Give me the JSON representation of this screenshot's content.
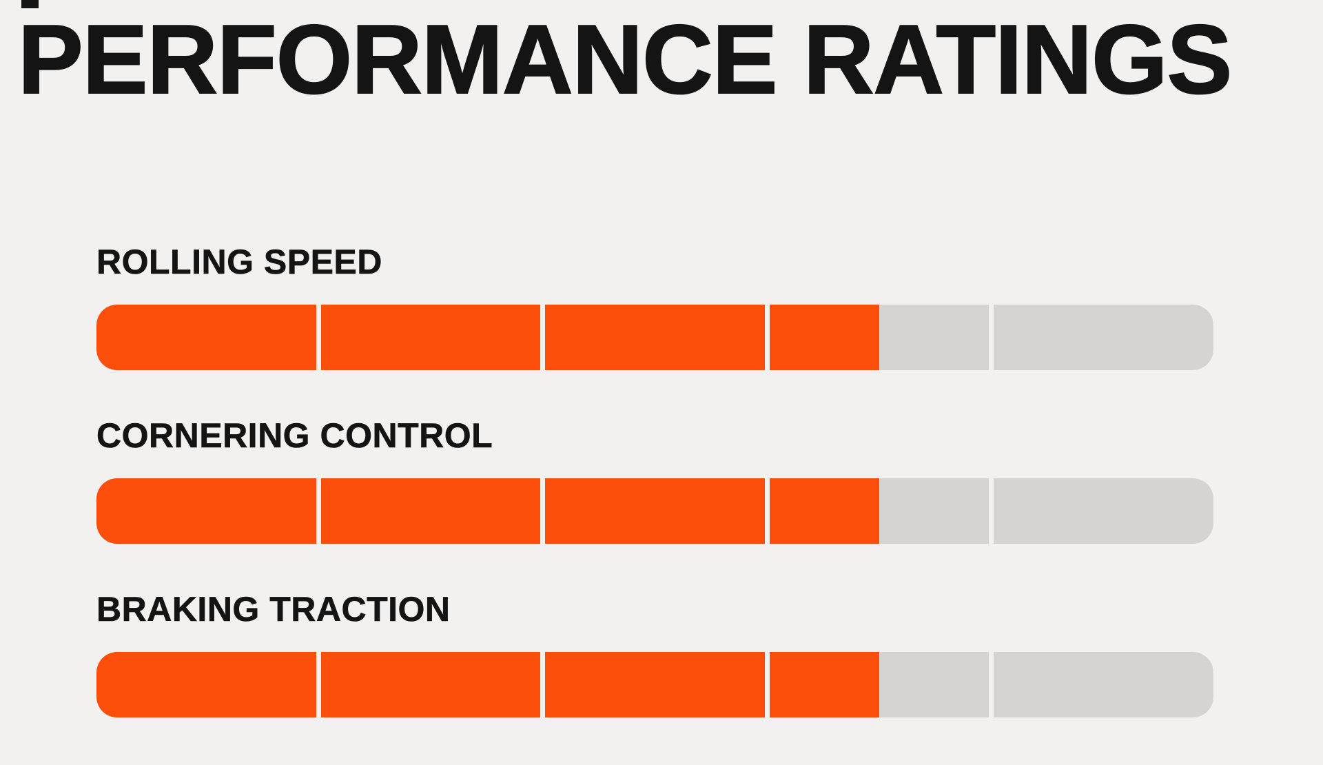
{
  "title": "PERFORMANCE RATINGS",
  "chart_data": {
    "type": "bar",
    "orientation": "horizontal",
    "title": "PERFORMANCE RATINGS",
    "categories": [
      "ROLLING SPEED",
      "CORNERING CONTROL",
      "BRAKING TRACTION"
    ],
    "values": [
      3.5,
      3.5,
      3.5
    ],
    "value_max": 5,
    "segments_per_bar": 5,
    "grid": "off",
    "legend": "none",
    "colors": {
      "fill": "#fb4e0a",
      "track": "#d6d3d1",
      "background": "#f2f1ef",
      "text": "#141414"
    }
  }
}
